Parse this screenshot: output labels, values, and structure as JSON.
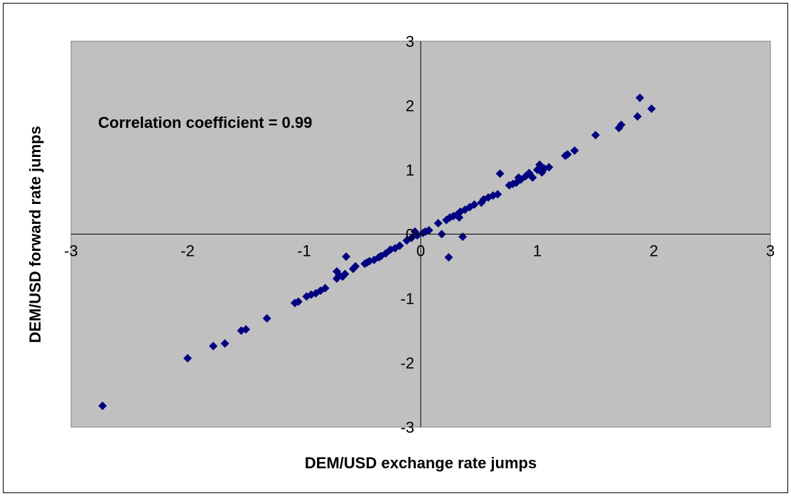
{
  "chart_data": {
    "type": "scatter",
    "title": "",
    "xlabel": "DEM/USD exchange rate jumps",
    "ylabel": "DEM/USD forward rate jumps",
    "annotation": "Correlation coefficient = 0.99",
    "xlim": [
      -3,
      3
    ],
    "ylim": [
      -3,
      3
    ],
    "x_ticks": [
      "-3",
      "-2",
      "-1",
      "0",
      "1",
      "2",
      "3"
    ],
    "y_ticks": [
      "3",
      "2",
      "1",
      "0",
      "-1",
      "-2",
      "-3"
    ],
    "grid": false,
    "legend": "none",
    "colors": {
      "plot_background": "#c0c0c0",
      "marker": "#000080",
      "axis": "#000000"
    },
    "series": [
      {
        "marker": "diamond",
        "points": [
          [
            -2.73,
            -2.67
          ],
          [
            -2.0,
            -1.93
          ],
          [
            -1.78,
            -1.74
          ],
          [
            -1.68,
            -1.7
          ],
          [
            -1.54,
            -1.5
          ],
          [
            -1.5,
            -1.48
          ],
          [
            -1.32,
            -1.31
          ],
          [
            -1.08,
            -1.07
          ],
          [
            -1.05,
            -1.05
          ],
          [
            -0.98,
            -0.97
          ],
          [
            -0.94,
            -0.94
          ],
          [
            -0.9,
            -0.92
          ],
          [
            -0.86,
            -0.88
          ],
          [
            -0.82,
            -0.84
          ],
          [
            -0.72,
            -0.69
          ],
          [
            -0.7,
            -0.64
          ],
          [
            -0.72,
            -0.58
          ],
          [
            -0.67,
            -0.66
          ],
          [
            -0.65,
            -0.62
          ],
          [
            -0.64,
            -0.35
          ],
          [
            -0.58,
            -0.54
          ],
          [
            -0.56,
            -0.5
          ],
          [
            -0.48,
            -0.46
          ],
          [
            -0.46,
            -0.44
          ],
          [
            -0.44,
            -0.42
          ],
          [
            -0.4,
            -0.4
          ],
          [
            -0.36,
            -0.36
          ],
          [
            -0.34,
            -0.34
          ],
          [
            -0.3,
            -0.3
          ],
          [
            -0.26,
            -0.24
          ],
          [
            -0.22,
            -0.22
          ],
          [
            -0.18,
            -0.18
          ],
          [
            -0.12,
            -0.1
          ],
          [
            -0.08,
            -0.06
          ],
          [
            -0.05,
            0.04
          ],
          [
            -0.03,
            -0.02
          ],
          [
            0.02,
            0.02
          ],
          [
            0.04,
            0.04
          ],
          [
            0.07,
            0.06
          ],
          [
            0.15,
            0.17
          ],
          [
            0.18,
            0.0
          ],
          [
            0.22,
            0.22
          ],
          [
            0.24,
            -0.36
          ],
          [
            0.25,
            0.26
          ],
          [
            0.28,
            0.28
          ],
          [
            0.31,
            0.3
          ],
          [
            0.33,
            0.26
          ],
          [
            0.34,
            0.35
          ],
          [
            0.36,
            -0.04
          ],
          [
            0.38,
            0.38
          ],
          [
            0.42,
            0.42
          ],
          [
            0.46,
            0.46
          ],
          [
            0.52,
            0.49
          ],
          [
            0.54,
            0.54
          ],
          [
            0.58,
            0.57
          ],
          [
            0.62,
            0.6
          ],
          [
            0.66,
            0.62
          ],
          [
            0.68,
            0.94
          ],
          [
            0.76,
            0.76
          ],
          [
            0.79,
            0.78
          ],
          [
            0.82,
            0.8
          ],
          [
            0.84,
            0.88
          ],
          [
            0.86,
            0.85
          ],
          [
            0.9,
            0.9
          ],
          [
            0.93,
            0.95
          ],
          [
            0.96,
            0.88
          ],
          [
            1.0,
            1.0
          ],
          [
            1.02,
            1.08
          ],
          [
            1.04,
            0.96
          ],
          [
            1.06,
            1.02
          ],
          [
            1.1,
            1.04
          ],
          [
            1.24,
            1.22
          ],
          [
            1.26,
            1.24
          ],
          [
            1.32,
            1.3
          ],
          [
            1.5,
            1.54
          ],
          [
            1.7,
            1.65
          ],
          [
            1.72,
            1.7
          ],
          [
            1.86,
            1.83
          ],
          [
            1.88,
            2.12
          ],
          [
            1.98,
            1.95
          ]
        ]
      }
    ]
  }
}
